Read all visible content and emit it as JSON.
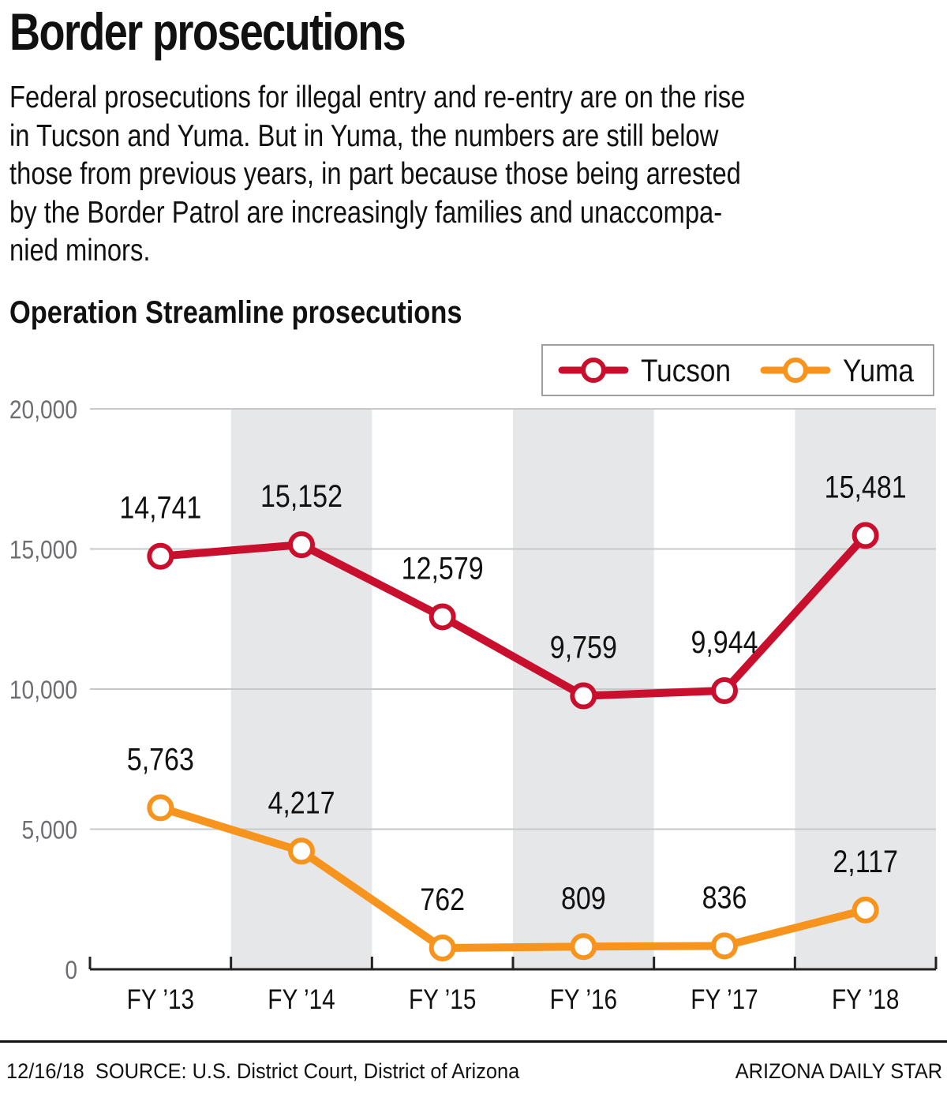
{
  "headline": "Border prosecutions",
  "dek_lines": [
    "Federal prosecutions for illegal entry and re-entry are on the rise",
    "in Tucson and Yuma. But in Yuma, the numbers are still below",
    "those from previous years, in part because those being arrested",
    "by the Border Patrol are increasingly families and unaccompa-",
    "nied minors."
  ],
  "footer": {
    "date": "12/16/18",
    "source": "SOURCE: U.S. District Court, District of Arizona",
    "credit": "ARIZONA DAILY STAR"
  },
  "colors": {
    "tucson": "#c8102e",
    "yuma": "#f7941d",
    "band": "#e6e7e8",
    "grid": "#c7c8ca",
    "axis": "#222222"
  },
  "chart_data": {
    "type": "line",
    "title": "Operation Streamline prosecutions",
    "categories": [
      "FY ’13",
      "FY ’14",
      "FY ’15",
      "FY ’16",
      "FY ’17",
      "FY ’18"
    ],
    "series": [
      {
        "name": "Tucson",
        "values": [
          14741,
          15152,
          12579,
          9759,
          9944,
          15481
        ],
        "labels": [
          "14,741",
          "15,152",
          "12,579",
          "9,759",
          "9,944",
          "15,481"
        ],
        "color": "#c8102e"
      },
      {
        "name": "Yuma",
        "values": [
          5763,
          4217,
          762,
          809,
          836,
          2117
        ],
        "labels": [
          "5,763",
          "4,217",
          "762",
          "809",
          "836",
          "2,117"
        ],
        "color": "#f7941d"
      }
    ],
    "yticks": [
      0,
      5000,
      10000,
      15000,
      20000
    ],
    "ytick_labels": [
      "0",
      "5,000",
      "10,000",
      "15,000",
      "20,000"
    ],
    "ylim": [
      0,
      20000
    ],
    "grid": true,
    "shaded_columns": [
      1,
      3,
      5
    ],
    "legend_position": "top-right"
  }
}
